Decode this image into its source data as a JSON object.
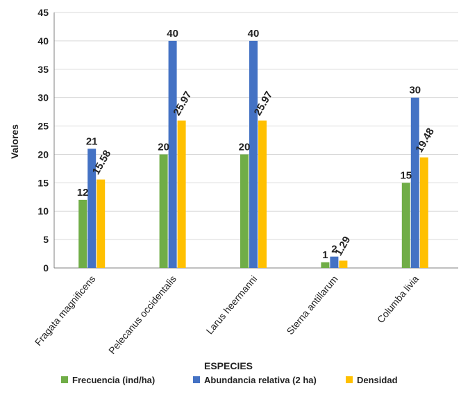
{
  "chart_data": {
    "type": "bar",
    "title": "",
    "xlabel": "ESPECIES",
    "ylabel": "Valores",
    "ylim": [
      0,
      45
    ],
    "yticks": [
      0,
      5,
      10,
      15,
      20,
      25,
      30,
      35,
      40,
      45
    ],
    "grid": "horizontal",
    "legend_position": "bottom",
    "categories": [
      "Fragata magnificens",
      "Pelecanus occidentalis",
      "Larus heermanni",
      "Sterna antillarum",
      "Columba livia"
    ],
    "series": [
      {
        "name": "Frecuencia (ind/ha)",
        "color": "#70ad47",
        "values": [
          12,
          20,
          20,
          1,
          15
        ],
        "labels": [
          "12",
          "20",
          "20",
          "1",
          "15"
        ]
      },
      {
        "name": "Abundancia relativa (2 ha)",
        "color": "#4472c4",
        "values": [
          21,
          40,
          40,
          2,
          30
        ],
        "labels": [
          "21",
          "40",
          "40",
          "2",
          "30"
        ]
      },
      {
        "name": "Densidad",
        "color": "#ffc000",
        "values": [
          15.58,
          25.97,
          25.97,
          1.29,
          19.48
        ],
        "labels": [
          "15.58",
          "25.97",
          "25.97",
          "1.29",
          "19.48"
        ]
      }
    ]
  }
}
